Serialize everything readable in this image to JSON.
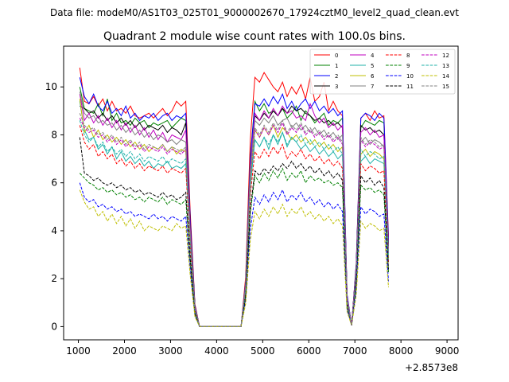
{
  "figure": {
    "suptitle": "Data file: modeM0/AS1T03_025T01_9000002670_17924cztM0_level2_quad_clean.evt"
  },
  "chart_data": {
    "type": "line",
    "title": "Quadrant 2 module wise count rates with 100.0s bins.",
    "xlabel": "",
    "ylabel": "",
    "x_offset_label": "+2.8573e8",
    "xlim": [
      680,
      9240
    ],
    "ylim": [
      -0.55,
      11.7
    ],
    "x_ticks": [
      1000,
      2000,
      3000,
      4000,
      5000,
      6000,
      7000,
      8000,
      9000
    ],
    "y_ticks": [
      0,
      2,
      4,
      6,
      8,
      10
    ],
    "x_tick_labels": [
      "1000",
      "2000",
      "3000",
      "4000",
      "5000",
      "6000",
      "7000",
      "8000",
      "9000"
    ],
    "y_tick_labels": [
      "0",
      "2",
      "4",
      "6",
      "8",
      "10"
    ],
    "grid": false,
    "legend_position": "top-right",
    "x_start": 1030,
    "bin_width": 100,
    "n_bins": 79,
    "series": [
      {
        "name": "0",
        "color": "#ff0000",
        "dash": "solid",
        "segments": [
          10.8,
          9.4,
          9.3,
          9.6,
          9.2,
          9.5,
          9.0,
          9.4,
          9.0,
          9.1,
          8.9,
          9.2,
          8.8,
          8.7,
          8.8,
          8.9,
          8.7,
          8.9,
          9.1,
          8.8,
          9.0,
          9.4,
          9.2,
          9.4,
          10.4,
          10.2,
          10.6,
          10.3,
          10.0,
          9.8,
          10.2,
          9.6,
          10.0,
          9.7,
          10.1,
          9.5,
          10.4,
          9.4,
          9.6,
          10.2,
          9.0,
          9.4,
          9.0,
          8.8,
          8.7,
          8.9,
          8.6,
          9.0,
          8.7,
          8.8,
          8.9
        ]
      },
      {
        "name": "1",
        "color": "#008000",
        "dash": "solid",
        "segments": [
          10.0,
          9.1,
          9.0,
          8.9,
          9.3,
          8.8,
          9.5,
          8.6,
          8.9,
          8.5,
          8.6,
          8.4,
          8.7,
          8.5,
          8.6,
          8.3,
          8.5,
          8.4,
          8.5,
          8.6,
          8.3,
          8.5,
          8.7,
          8.6,
          9.4,
          9.0,
          9.3,
          8.9,
          9.0,
          8.8,
          9.1,
          8.7,
          8.9,
          9.2,
          8.6,
          9.0,
          8.8,
          8.5,
          8.7,
          8.9,
          8.4,
          8.6,
          8.5,
          8.7,
          8.3,
          8.6,
          8.5,
          8.4,
          8.6,
          8.5,
          8.2
        ]
      },
      {
        "name": "2",
        "color": "#0000ff",
        "dash": "solid",
        "segments": [
          10.4,
          9.6,
          9.3,
          9.7,
          9.2,
          9.0,
          9.4,
          8.9,
          9.1,
          8.8,
          9.2,
          8.7,
          8.9,
          8.6,
          8.8,
          8.7,
          8.9,
          8.6,
          8.8,
          8.9,
          8.6,
          8.8,
          8.7,
          8.9,
          9.3,
          9.2,
          9.5,
          9.2,
          9.6,
          9.3,
          9.7,
          9.1,
          9.4,
          9.0,
          9.3,
          9.5,
          9.1,
          9.4,
          9.0,
          9.2,
          8.9,
          9.1,
          8.8,
          9.0,
          8.7,
          8.9,
          8.8,
          8.6,
          8.9,
          8.7,
          8.6
        ]
      },
      {
        "name": "3",
        "color": "#000000",
        "dash": "solid",
        "segments": [
          9.2,
          9.1,
          8.9,
          9.0,
          8.7,
          8.9,
          8.6,
          8.8,
          8.5,
          8.7,
          8.4,
          8.6,
          8.3,
          8.5,
          8.2,
          8.4,
          8.3,
          8.2,
          8.4,
          8.1,
          8.3,
          8.2,
          8.0,
          8.5,
          8.8,
          8.6,
          8.9,
          8.7,
          9.0,
          8.8,
          9.1,
          8.9,
          9.2,
          9.0,
          9.1,
          8.9,
          8.8,
          8.6,
          8.7,
          8.5,
          8.6,
          8.4,
          8.5,
          8.3,
          8.4,
          8.2,
          8.3,
          8.1,
          8.2,
          8.0,
          8.0
        ]
      },
      {
        "name": "4",
        "color": "#bf00bf",
        "dash": "solid",
        "segments": [
          9.7,
          8.6,
          8.9,
          8.5,
          8.8,
          8.4,
          8.7,
          8.3,
          8.6,
          8.2,
          8.5,
          8.1,
          8.4,
          8.0,
          8.3,
          7.9,
          8.2,
          7.8,
          8.1,
          7.7,
          8.0,
          7.9,
          7.8,
          8.2,
          8.9,
          8.6,
          9.0,
          8.7,
          9.1,
          8.8,
          9.2,
          8.9,
          9.0,
          8.7,
          8.8,
          8.6,
          9.3,
          8.8,
          8.5,
          8.7,
          8.3,
          8.5,
          8.2,
          8.4,
          8.1,
          8.3,
          8.0,
          8.2,
          7.9,
          8.0,
          7.8
        ]
      },
      {
        "name": "5",
        "color": "#20b2aa",
        "dash": "solid",
        "segments": [
          9.4,
          8.2,
          7.8,
          7.9,
          7.4,
          7.6,
          7.2,
          7.5,
          7.0,
          7.3,
          6.9,
          7.1,
          6.8,
          7.0,
          6.7,
          6.9,
          6.6,
          6.8,
          6.7,
          6.9,
          6.6,
          6.7,
          6.6,
          6.8,
          7.8,
          7.5,
          7.9,
          7.4,
          8.0,
          7.6,
          8.1,
          7.5,
          7.9,
          7.7,
          7.4,
          7.6,
          7.3,
          7.5,
          7.2,
          7.4,
          7.1,
          7.3,
          7.0,
          7.2,
          6.9,
          7.1,
          6.8,
          7.0,
          6.9,
          6.8,
          6.7
        ]
      },
      {
        "name": "6",
        "color": "#bfbf00",
        "dash": "solid",
        "segments": [
          9.5,
          8.1,
          8.4,
          7.9,
          8.2,
          7.8,
          8.0,
          7.7,
          7.9,
          7.6,
          7.8,
          7.5,
          7.7,
          7.4,
          7.6,
          7.3,
          7.5,
          7.4,
          7.6,
          7.3,
          7.5,
          7.2,
          7.4,
          7.3,
          8.2,
          7.9,
          8.3,
          8.0,
          8.4,
          7.9,
          8.3,
          8.1,
          7.8,
          8.0,
          7.7,
          7.9,
          7.6,
          7.8,
          7.5,
          7.7,
          7.4,
          7.6,
          7.3,
          7.5,
          7.2,
          7.4,
          7.1,
          7.3,
          7.2,
          7.0,
          6.9
        ]
      },
      {
        "name": "7",
        "color": "#808080",
        "dash": "solid",
        "segments": [
          9.8,
          8.9,
          8.7,
          8.8,
          8.5,
          8.6,
          8.4,
          8.5,
          8.2,
          8.4,
          8.1,
          8.3,
          8.0,
          8.2,
          7.9,
          8.1,
          7.8,
          8.0,
          7.9,
          7.7,
          7.8,
          7.6,
          7.8,
          7.7,
          8.6,
          8.4,
          8.7,
          8.5,
          8.8,
          8.4,
          8.6,
          8.7,
          8.3,
          8.5,
          8.2,
          8.4,
          8.1,
          8.3,
          8.0,
          8.2,
          7.9,
          8.1,
          7.8,
          8.0,
          7.7,
          7.9,
          7.6,
          7.8,
          7.7,
          7.5,
          7.4
        ]
      },
      {
        "name": "8",
        "color": "#ff0000",
        "dash": "dashed",
        "segments": [
          8.4,
          7.7,
          7.4,
          7.6,
          7.1,
          7.3,
          7.0,
          7.2,
          6.8,
          7.0,
          6.7,
          6.9,
          6.6,
          6.8,
          6.5,
          6.7,
          6.6,
          6.5,
          6.7,
          6.4,
          6.6,
          6.5,
          6.4,
          6.6,
          7.3,
          7.0,
          7.4,
          7.1,
          7.5,
          7.2,
          7.6,
          7.0,
          7.3,
          7.1,
          7.4,
          7.0,
          7.2,
          6.9,
          7.1,
          6.8,
          7.0,
          6.7,
          6.9,
          6.6,
          6.8,
          6.5,
          6.7,
          6.6,
          6.4,
          6.5,
          6.3
        ]
      },
      {
        "name": "9",
        "color": "#008000",
        "dash": "dashed",
        "segments": [
          6.4,
          6.2,
          6.0,
          5.9,
          5.7,
          5.8,
          5.6,
          5.7,
          5.5,
          5.6,
          5.4,
          5.5,
          5.3,
          5.4,
          5.2,
          5.4,
          5.3,
          5.2,
          5.4,
          5.1,
          5.3,
          5.2,
          5.1,
          5.3,
          6.3,
          6.0,
          6.4,
          6.1,
          6.5,
          6.2,
          6.6,
          6.1,
          6.4,
          6.2,
          6.5,
          6.0,
          6.3,
          6.1,
          6.2,
          6.0,
          6.1,
          5.9,
          6.0,
          5.8,
          5.9,
          5.7,
          5.8,
          5.6,
          5.7,
          5.5,
          5.4
        ]
      },
      {
        "name": "10",
        "color": "#0000ff",
        "dash": "dashed",
        "segments": [
          6.0,
          5.4,
          5.2,
          5.3,
          5.0,
          5.1,
          4.9,
          5.0,
          4.8,
          4.9,
          4.7,
          4.8,
          4.6,
          4.7,
          4.6,
          4.5,
          4.7,
          4.5,
          4.6,
          4.4,
          4.6,
          4.5,
          4.4,
          4.6,
          5.4,
          5.1,
          5.5,
          5.2,
          5.6,
          5.3,
          5.7,
          5.2,
          5.5,
          5.3,
          5.6,
          5.2,
          5.4,
          5.1,
          5.3,
          5.0,
          5.2,
          4.9,
          5.1,
          4.8,
          5.0,
          4.7,
          4.9,
          4.8,
          4.6,
          4.7,
          4.5
        ]
      },
      {
        "name": "11",
        "color": "#000000",
        "dash": "dashed",
        "segments": [
          7.9,
          6.4,
          6.3,
          6.1,
          6.2,
          6.0,
          5.9,
          6.0,
          5.8,
          5.9,
          5.7,
          5.8,
          5.6,
          5.7,
          5.5,
          5.6,
          5.5,
          5.4,
          5.6,
          5.4,
          5.5,
          5.3,
          5.4,
          5.6,
          6.5,
          6.3,
          6.6,
          6.4,
          6.7,
          6.5,
          6.8,
          6.6,
          6.9,
          6.6,
          6.8,
          6.5,
          6.7,
          6.4,
          6.6,
          6.3,
          6.5,
          6.2,
          6.4,
          6.1,
          6.3,
          6.0,
          6.2,
          5.9,
          6.1,
          5.8,
          5.7
        ]
      },
      {
        "name": "12",
        "color": "#bf00bf",
        "dash": "dashed",
        "segments": [
          8.7,
          8.3,
          8.1,
          8.2,
          7.9,
          8.0,
          7.7,
          7.9,
          7.6,
          7.8,
          7.5,
          7.7,
          7.4,
          7.6,
          7.3,
          7.5,
          7.4,
          7.3,
          7.5,
          7.2,
          7.4,
          7.3,
          7.2,
          7.4,
          8.2,
          7.9,
          8.3,
          8.0,
          8.4,
          8.1,
          8.5,
          8.0,
          8.3,
          8.1,
          8.4,
          8.0,
          8.2,
          7.9,
          8.1,
          7.8,
          8.0,
          7.7,
          7.9,
          7.6,
          7.8,
          7.5,
          7.7,
          7.6,
          7.4,
          7.5,
          7.3
        ]
      },
      {
        "name": "13",
        "color": "#20b2aa",
        "dash": "dashed",
        "segments": [
          8.6,
          8.0,
          7.7,
          7.9,
          7.5,
          7.7,
          7.3,
          7.5,
          7.2,
          7.4,
          7.1,
          7.3,
          7.0,
          7.2,
          6.9,
          7.1,
          7.0,
          6.9,
          7.1,
          6.8,
          7.0,
          6.9,
          6.8,
          7.0,
          7.8,
          7.5,
          7.9,
          7.6,
          8.0,
          7.7,
          8.1,
          7.6,
          7.9,
          7.7,
          8.0,
          7.6,
          7.8,
          7.5,
          7.7,
          7.4,
          7.6,
          7.3,
          7.5,
          7.2,
          7.4,
          7.1,
          7.3,
          7.2,
          7.0,
          7.1,
          6.9
        ]
      },
      {
        "name": "14",
        "color": "#bfbf00",
        "dash": "dashed",
        "segments": [
          5.7,
          5.2,
          4.9,
          5.0,
          4.6,
          4.8,
          4.4,
          4.7,
          4.3,
          4.6,
          4.2,
          4.5,
          4.1,
          4.4,
          4.0,
          4.2,
          4.1,
          4.0,
          4.2,
          4.1,
          4.0,
          4.3,
          4.1,
          4.2,
          4.8,
          4.5,
          4.9,
          4.6,
          5.0,
          4.7,
          5.1,
          4.6,
          4.9,
          4.7,
          5.0,
          4.6,
          4.8,
          4.5,
          4.7,
          4.4,
          4.6,
          4.3,
          4.5,
          4.2,
          4.4,
          4.1,
          4.3,
          4.2,
          4.0,
          4.1,
          3.9
        ]
      },
      {
        "name": "15",
        "color": "#808080",
        "dash": "dashed",
        "segments": [
          8.9,
          8.4,
          8.2,
          8.3,
          8.0,
          8.1,
          7.8,
          8.0,
          7.7,
          7.9,
          7.6,
          7.8,
          7.5,
          7.7,
          7.4,
          7.6,
          7.5,
          7.4,
          7.6,
          7.3,
          7.5,
          7.4,
          7.3,
          7.5,
          8.3,
          8.0,
          8.4,
          8.1,
          8.5,
          8.2,
          8.6,
          8.1,
          8.4,
          8.2,
          8.5,
          8.1,
          8.3,
          8.0,
          8.2,
          7.9,
          8.1,
          7.8,
          8.0,
          7.7,
          7.9,
          7.6,
          7.8,
          7.7,
          7.5,
          7.6,
          7.4
        ]
      }
    ]
  }
}
